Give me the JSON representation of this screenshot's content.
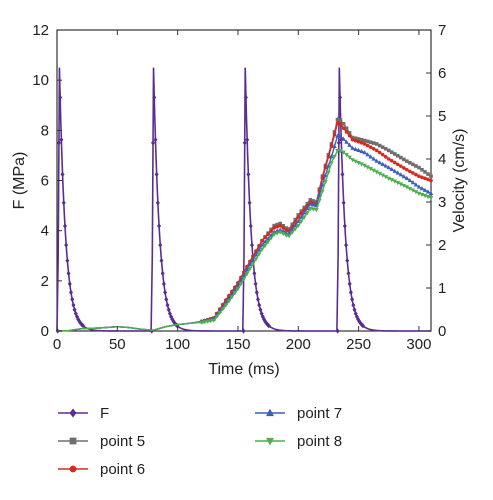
{
  "chart_data": {
    "type": "line",
    "title": "",
    "xlabel": "Time (ms)",
    "ylabel_left": "F (MPa)",
    "ylabel_right": "Velocity (cm/s)",
    "xlim": [
      0,
      310
    ],
    "ylim_left": [
      0,
      12
    ],
    "ylim_right": [
      0,
      7
    ],
    "xticks": [
      0,
      50,
      100,
      150,
      200,
      250,
      300
    ],
    "yticks_left": [
      0,
      2,
      4,
      6,
      8,
      10,
      12
    ],
    "yticks_right": [
      0,
      1,
      2,
      3,
      4,
      5,
      6,
      7
    ],
    "grid": false,
    "legend_position": "bottom",
    "series": [
      {
        "name": "F",
        "axis": "left",
        "color": "#5a2d91",
        "marker": "diamond",
        "pulse": {
          "centers": [
            2,
            80,
            156,
            234
          ],
          "peak": 10.5,
          "rise": 1.4,
          "decay": 5.0
        },
        "points": [
          [
            2,
            10.5
          ],
          [
            78.6,
            0
          ],
          [
            80,
            10.5
          ],
          [
            154.6,
            0
          ],
          [
            156,
            10.5
          ],
          [
            232.6,
            0
          ],
          [
            234,
            10.5
          ],
          [
            310,
            0
          ]
        ]
      },
      {
        "name": "point 5",
        "axis": "right",
        "color": "#6e6e6e",
        "marker": "square",
        "points": [
          [
            0,
            0
          ],
          [
            10,
            0.01
          ],
          [
            20,
            0.05
          ],
          [
            35,
            0.07
          ],
          [
            50,
            0.1
          ],
          [
            60,
            0.08
          ],
          [
            70,
            0.04
          ],
          [
            80,
            0.02
          ],
          [
            90,
            0.1
          ],
          [
            100,
            0.15
          ],
          [
            110,
            0.18
          ],
          [
            120,
            0.22
          ],
          [
            130,
            0.3
          ],
          [
            140,
            0.7
          ],
          [
            150,
            1.1
          ],
          [
            160,
            1.6
          ],
          [
            170,
            2.1
          ],
          [
            180,
            2.45
          ],
          [
            185,
            2.5
          ],
          [
            192,
            2.35
          ],
          [
            200,
            2.7
          ],
          [
            210,
            3.05
          ],
          [
            215,
            3.0
          ],
          [
            220,
            3.6
          ],
          [
            228,
            4.4
          ],
          [
            233,
            4.97
          ],
          [
            238,
            4.8
          ],
          [
            245,
            4.5
          ],
          [
            255,
            4.43
          ],
          [
            265,
            4.35
          ],
          [
            275,
            4.2
          ],
          [
            290,
            3.95
          ],
          [
            300,
            3.8
          ],
          [
            310,
            3.6
          ]
        ]
      },
      {
        "name": "point 6",
        "axis": "right",
        "color": "#d62a1f",
        "marker": "circle",
        "points": [
          [
            0,
            0
          ],
          [
            10,
            0.01
          ],
          [
            20,
            0.05
          ],
          [
            35,
            0.07
          ],
          [
            50,
            0.1
          ],
          [
            60,
            0.08
          ],
          [
            70,
            0.04
          ],
          [
            80,
            0.02
          ],
          [
            90,
            0.1
          ],
          [
            100,
            0.15
          ],
          [
            110,
            0.18
          ],
          [
            120,
            0.22
          ],
          [
            130,
            0.3
          ],
          [
            140,
            0.72
          ],
          [
            150,
            1.12
          ],
          [
            160,
            1.62
          ],
          [
            170,
            2.1
          ],
          [
            180,
            2.4
          ],
          [
            185,
            2.45
          ],
          [
            192,
            2.3
          ],
          [
            200,
            2.65
          ],
          [
            210,
            3.0
          ],
          [
            215,
            2.95
          ],
          [
            220,
            3.55
          ],
          [
            228,
            4.35
          ],
          [
            233,
            4.88
          ],
          [
            238,
            4.7
          ],
          [
            245,
            4.45
          ],
          [
            255,
            4.35
          ],
          [
            265,
            4.2
          ],
          [
            275,
            4.0
          ],
          [
            290,
            3.75
          ],
          [
            300,
            3.6
          ],
          [
            310,
            3.5
          ]
        ]
      },
      {
        "name": "point 7",
        "axis": "right",
        "color": "#3a5fc0",
        "marker": "triangle",
        "points": [
          [
            0,
            0
          ],
          [
            10,
            0.01
          ],
          [
            20,
            0.05
          ],
          [
            35,
            0.07
          ],
          [
            50,
            0.1
          ],
          [
            60,
            0.08
          ],
          [
            70,
            0.04
          ],
          [
            80,
            0.02
          ],
          [
            90,
            0.1
          ],
          [
            100,
            0.15
          ],
          [
            110,
            0.18
          ],
          [
            120,
            0.22
          ],
          [
            130,
            0.28
          ],
          [
            140,
            0.65
          ],
          [
            150,
            1.05
          ],
          [
            160,
            1.55
          ],
          [
            170,
            2.0
          ],
          [
            180,
            2.3
          ],
          [
            185,
            2.35
          ],
          [
            192,
            2.25
          ],
          [
            200,
            2.55
          ],
          [
            210,
            2.95
          ],
          [
            215,
            2.92
          ],
          [
            220,
            3.4
          ],
          [
            228,
            4.1
          ],
          [
            233,
            4.58
          ],
          [
            238,
            4.45
          ],
          [
            245,
            4.25
          ],
          [
            255,
            4.15
          ],
          [
            265,
            3.95
          ],
          [
            275,
            3.8
          ],
          [
            290,
            3.55
          ],
          [
            300,
            3.35
          ],
          [
            310,
            3.2
          ]
        ]
      },
      {
        "name": "point 8",
        "axis": "right",
        "color": "#4caf50",
        "marker": "down-triangle",
        "points": [
          [
            0,
            0
          ],
          [
            10,
            0.01
          ],
          [
            20,
            0.05
          ],
          [
            35,
            0.07
          ],
          [
            50,
            0.1
          ],
          [
            60,
            0.08
          ],
          [
            70,
            0.04
          ],
          [
            80,
            0.02
          ],
          [
            90,
            0.1
          ],
          [
            100,
            0.15
          ],
          [
            110,
            0.18
          ],
          [
            120,
            0.2
          ],
          [
            130,
            0.25
          ],
          [
            140,
            0.6
          ],
          [
            150,
            0.98
          ],
          [
            160,
            1.45
          ],
          [
            170,
            1.9
          ],
          [
            180,
            2.25
          ],
          [
            185,
            2.3
          ],
          [
            192,
            2.2
          ],
          [
            200,
            2.45
          ],
          [
            210,
            2.85
          ],
          [
            215,
            2.82
          ],
          [
            220,
            3.25
          ],
          [
            228,
            3.95
          ],
          [
            233,
            4.22
          ],
          [
            238,
            4.15
          ],
          [
            245,
            3.98
          ],
          [
            255,
            3.85
          ],
          [
            265,
            3.7
          ],
          [
            275,
            3.55
          ],
          [
            290,
            3.35
          ],
          [
            300,
            3.2
          ],
          [
            310,
            3.1
          ]
        ]
      }
    ]
  }
}
